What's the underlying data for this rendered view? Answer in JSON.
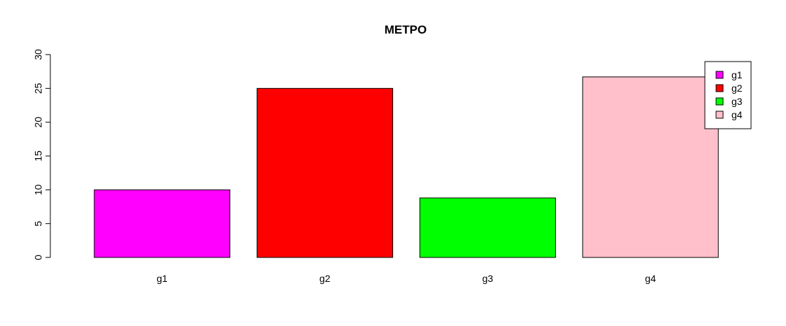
{
  "chart_data": {
    "type": "bar",
    "title": "METPO",
    "xlabel": "",
    "ylabel": "",
    "categories": [
      "g1",
      "g2",
      "g3",
      "g4"
    ],
    "values": [
      10,
      25,
      8.8,
      26.7
    ],
    "colors": [
      "#ff00ff",
      "#ff0000",
      "#00ff00",
      "#ffc0cb"
    ],
    "ylim": [
      0,
      30
    ],
    "yticks": [
      0,
      5,
      10,
      15,
      20,
      25,
      30
    ],
    "grid": false,
    "legend": {
      "placement": "top-right",
      "entries": [
        {
          "label": "g1",
          "color": "#ff00ff"
        },
        {
          "label": "g2",
          "color": "#ff0000"
        },
        {
          "label": "g3",
          "color": "#00ff00"
        },
        {
          "label": "g4",
          "color": "#ffc0cb"
        }
      ]
    }
  }
}
